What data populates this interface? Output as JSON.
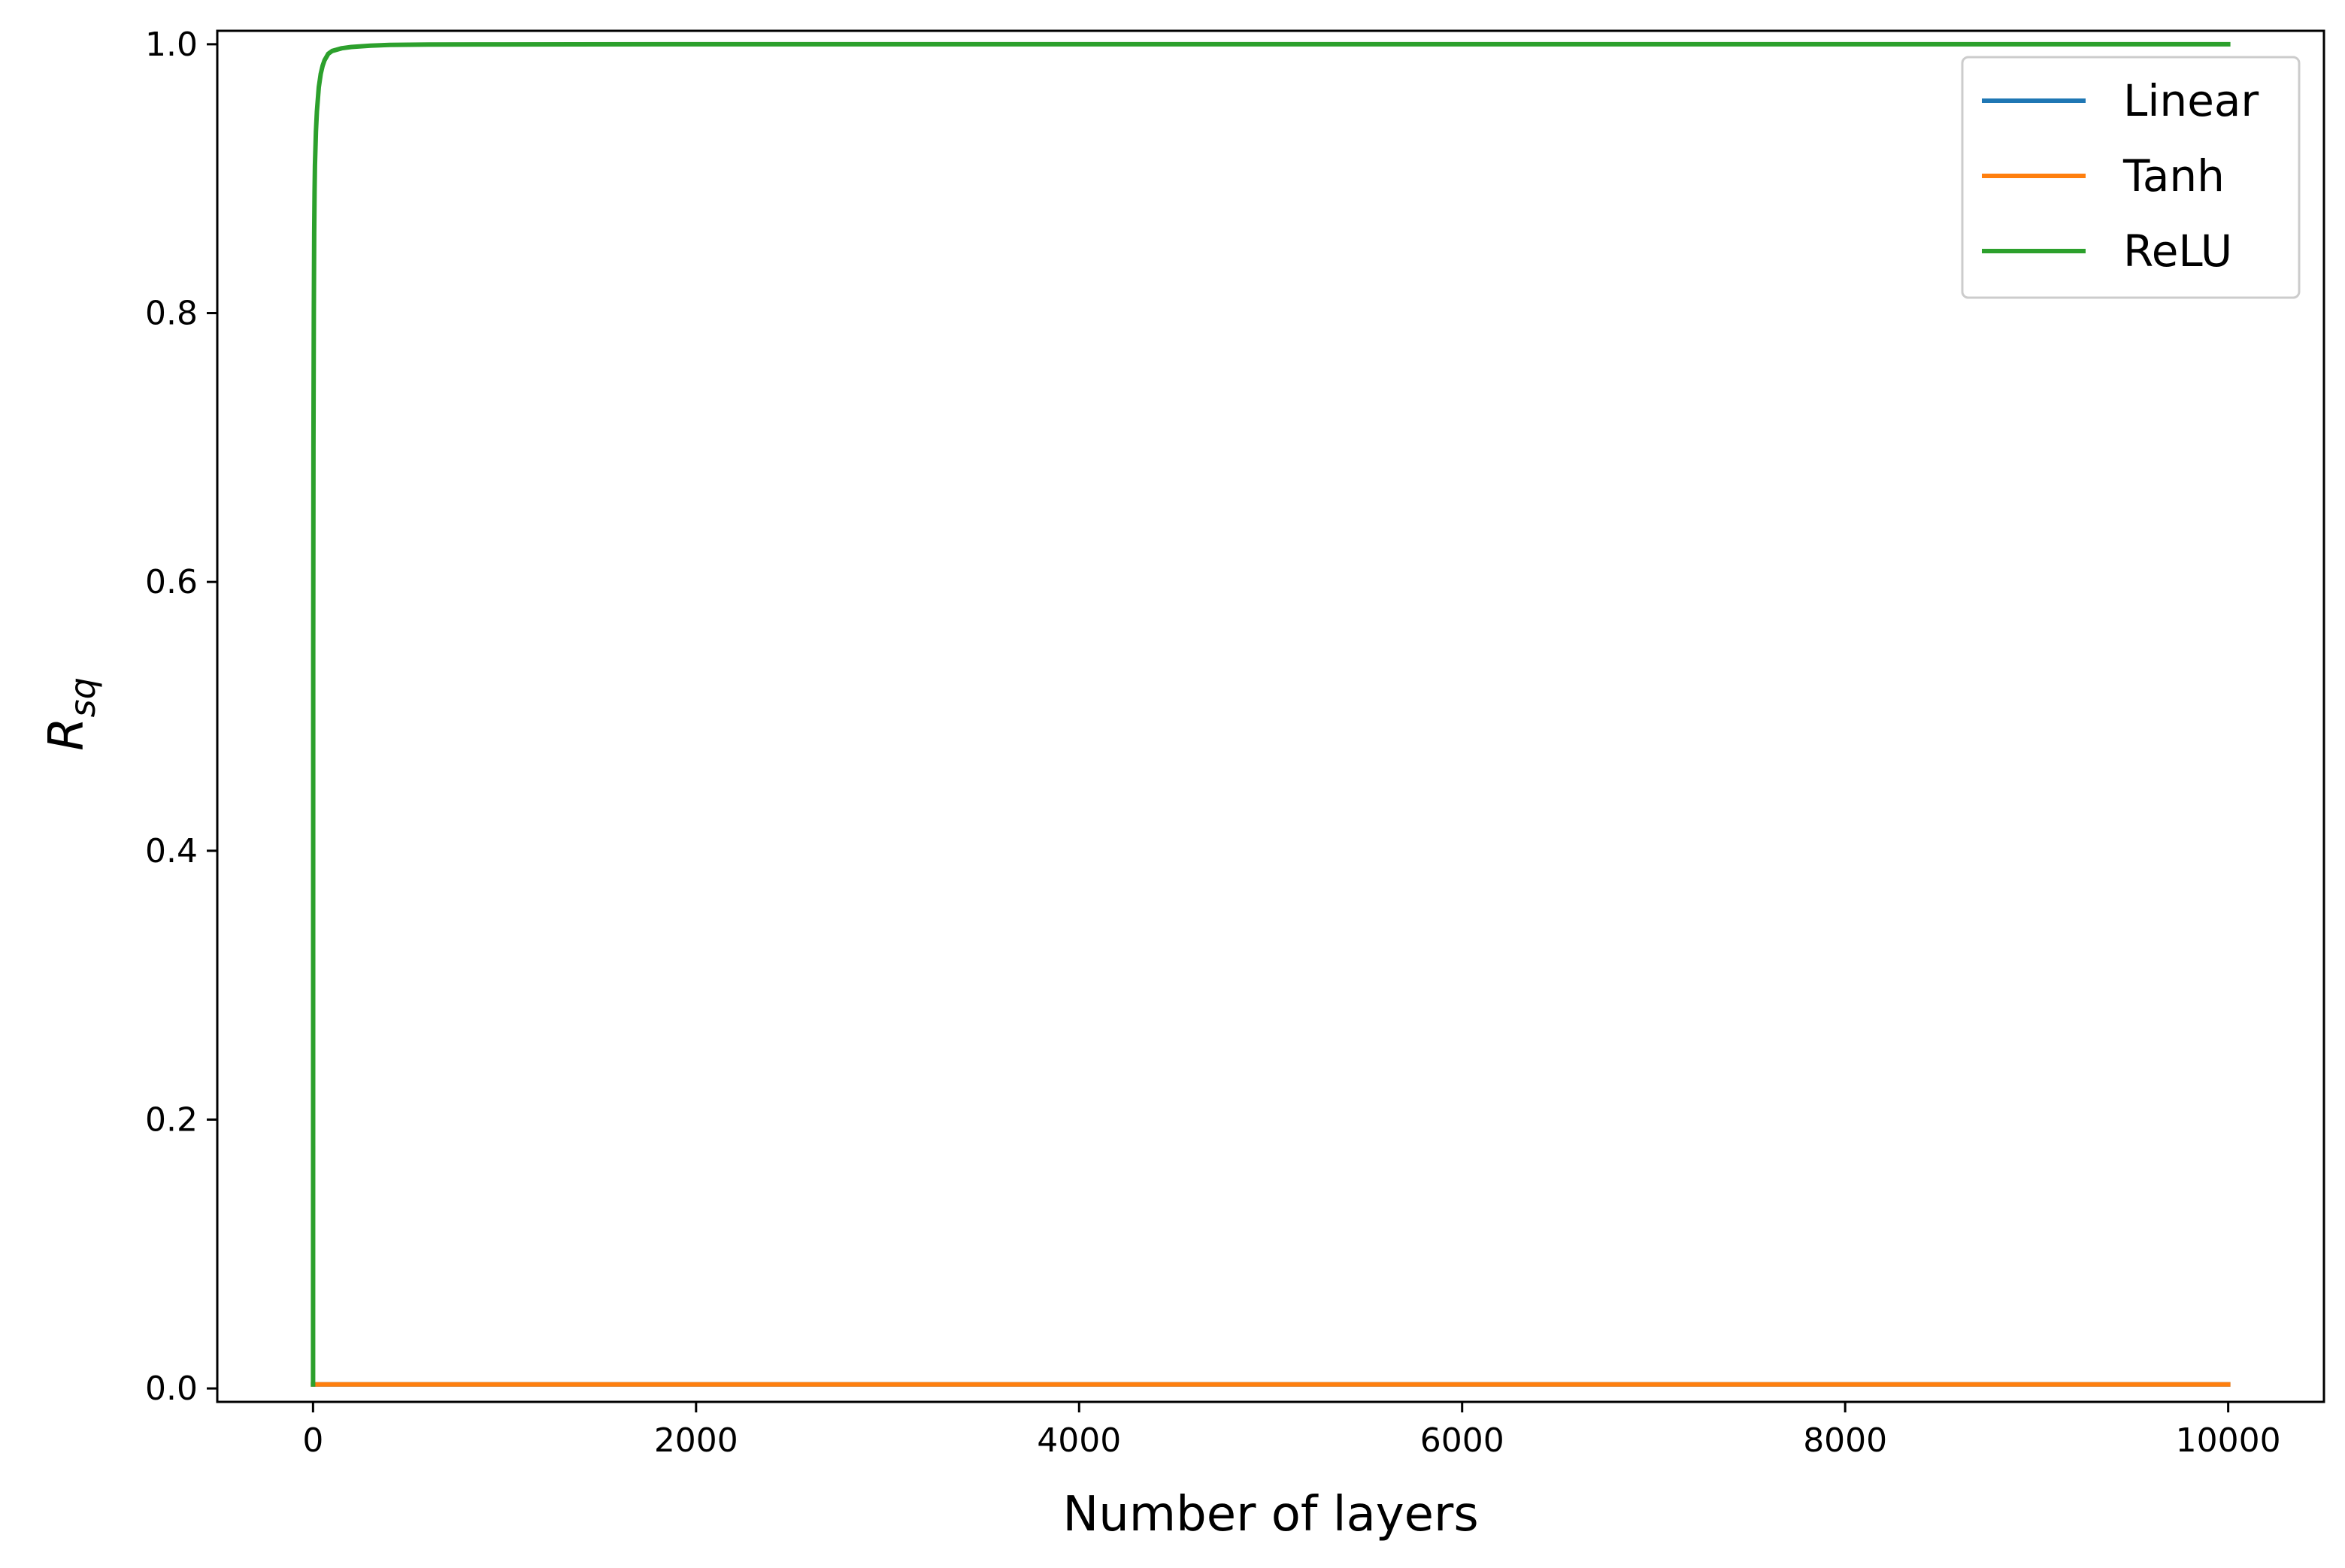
{
  "chart_data": {
    "type": "line",
    "title": "",
    "xlabel": "Number of layers",
    "ylabel": "R_sq",
    "ylabel_main": "R",
    "ylabel_sub": "sq",
    "xlim": [
      -500,
      10500
    ],
    "ylim": [
      -0.01,
      1.01
    ],
    "xticks": [
      0,
      2000,
      4000,
      6000,
      8000,
      10000
    ],
    "xtick_labels": [
      "0",
      "2000",
      "4000",
      "6000",
      "8000",
      "10000"
    ],
    "yticks": [
      0.0,
      0.2,
      0.4,
      0.6,
      0.8,
      1.0
    ],
    "ytick_labels": [
      "0.0",
      "0.2",
      "0.4",
      "0.6",
      "0.8",
      "1.0"
    ],
    "grid": false,
    "legend_position": "top-right",
    "series": [
      {
        "name": "Linear",
        "color": "#1f77b4",
        "x": [
          0,
          10000
        ],
        "y": [
          0.003,
          0.003
        ]
      },
      {
        "name": "Tanh",
        "color": "#ff7f0e",
        "x": [
          0,
          10000
        ],
        "y": [
          0.003,
          0.003
        ]
      },
      {
        "name": "ReLU",
        "color": "#2ca02c",
        "x": [
          0,
          1,
          2,
          4,
          6,
          8,
          10,
          15,
          20,
          30,
          40,
          50,
          60,
          80,
          100,
          150,
          200,
          300,
          400,
          600,
          1000,
          2000,
          5000,
          10000
        ],
        "y": [
          0.003,
          0.55,
          0.7,
          0.8,
          0.86,
          0.89,
          0.91,
          0.935,
          0.95,
          0.968,
          0.978,
          0.984,
          0.988,
          0.993,
          0.995,
          0.997,
          0.998,
          0.999,
          0.9995,
          0.9998,
          0.9999,
          1.0,
          1.0,
          1.0
        ]
      }
    ]
  }
}
